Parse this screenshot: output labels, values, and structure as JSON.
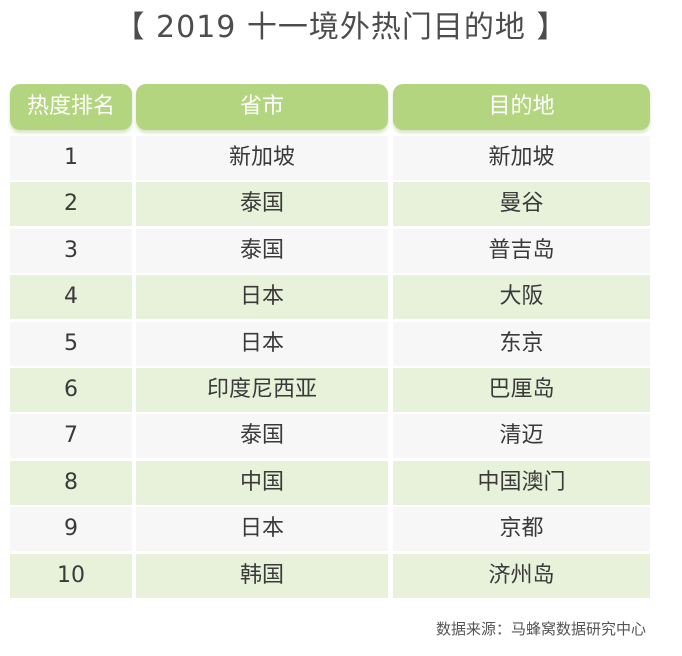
{
  "title": "【 2019 十一境外热门目的地 】",
  "table": {
    "headers": [
      "热度排名",
      "省市",
      "目的地"
    ],
    "rows": [
      [
        "1",
        "新加坡",
        "新加坡"
      ],
      [
        "2",
        "泰国",
        "曼谷"
      ],
      [
        "3",
        "泰国",
        "普吉岛"
      ],
      [
        "4",
        "日本",
        "大阪"
      ],
      [
        "5",
        "日本",
        "东京"
      ],
      [
        "6",
        "印度尼西亚",
        "巴厘岛"
      ],
      [
        "7",
        "泰国",
        "清迈"
      ],
      [
        "8",
        "中国",
        "中国澳门"
      ],
      [
        "9",
        "日本",
        "京都"
      ],
      [
        "10",
        "韩国",
        "济州岛"
      ]
    ]
  },
  "source": "数据来源：马蜂窝数据研究中心",
  "colors": {
    "header_bg": "#b4d57f",
    "row_green": "#e8f2da",
    "row_gray": "#f7f7f7"
  }
}
